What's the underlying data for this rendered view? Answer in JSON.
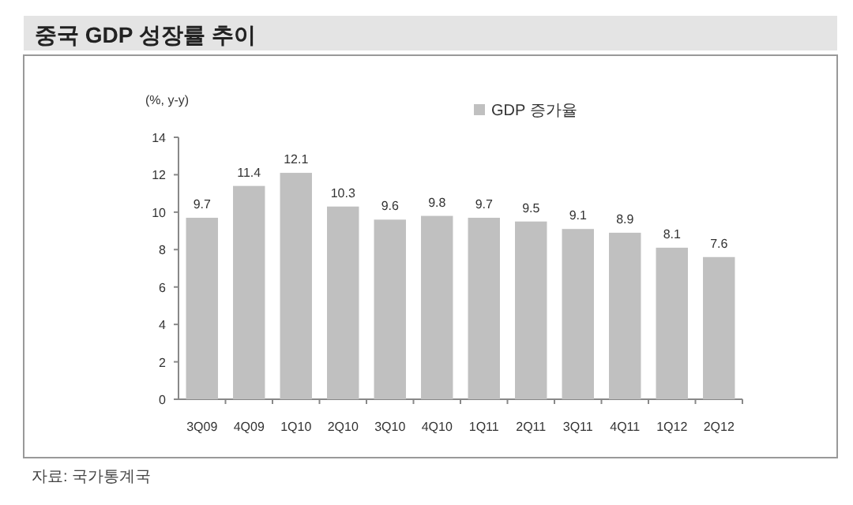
{
  "chart_data": {
    "type": "bar",
    "title": "중국 GDP 성장률 추이",
    "ylabel": "(%, y-y)",
    "categories": [
      "3Q09",
      "4Q09",
      "1Q10",
      "2Q10",
      "3Q10",
      "4Q10",
      "1Q11",
      "2Q11",
      "3Q11",
      "4Q11",
      "1Q12",
      "2Q12"
    ],
    "series": [
      {
        "name": "GDP 증가율",
        "color": "#c0c0c0",
        "values": [
          9.7,
          11.4,
          12.1,
          10.3,
          9.6,
          9.8,
          9.7,
          9.5,
          9.1,
          8.9,
          8.1,
          7.6
        ]
      }
    ],
    "ylim": [
      0,
      14
    ],
    "yticks": [
      0,
      2,
      4,
      6,
      8,
      10,
      12,
      14
    ],
    "grid": false,
    "legend": "top",
    "data_labels": true,
    "annotations": [
      "자료: 국가통계국"
    ]
  }
}
